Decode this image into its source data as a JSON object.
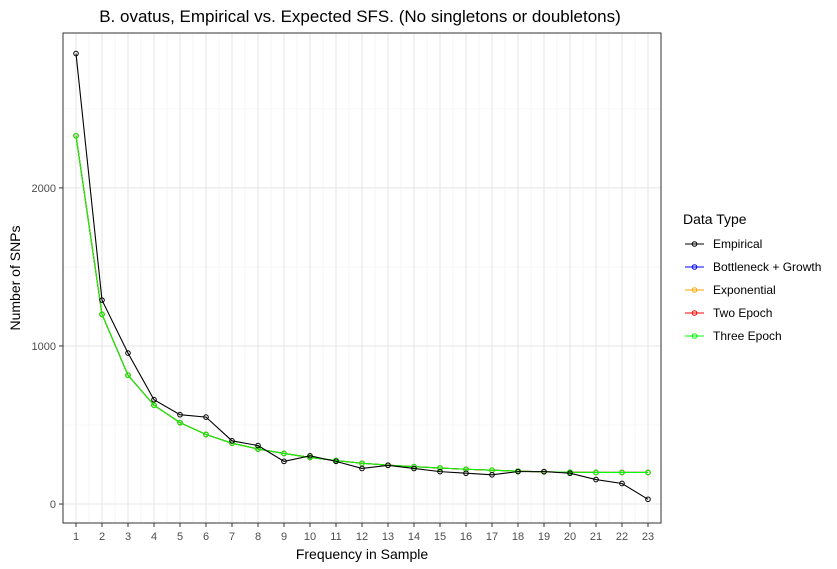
{
  "chart_data": {
    "type": "line",
    "title": "B. ovatus, Empirical vs. Expected SFS. (No singletons or doubletons)",
    "xlabel": "Frequency in Sample",
    "ylabel": "Number of SNPs",
    "x": [
      1,
      2,
      3,
      4,
      5,
      6,
      7,
      8,
      9,
      10,
      11,
      12,
      13,
      14,
      15,
      16,
      17,
      18,
      19,
      20,
      21,
      22,
      23
    ],
    "x_tick_labels": [
      "1",
      "2",
      "3",
      "4",
      "5",
      "6",
      "7",
      "8",
      "9",
      "10",
      "11",
      "12",
      "13",
      "14",
      "15",
      "16",
      "17",
      "18",
      "19",
      "20",
      "21",
      "22",
      "23"
    ],
    "y_ticks": [
      0,
      1000,
      2000
    ],
    "y_tick_labels": [
      "0",
      "1000",
      "2000"
    ],
    "xlim": [
      0.5,
      23.5
    ],
    "ylim": [
      -120,
      2980
    ],
    "grid": true,
    "legend": {
      "title": "Data Type",
      "position": "right",
      "entries": [
        {
          "name": "Empirical",
          "color": "#000000"
        },
        {
          "name": "Bottleneck + Growth",
          "color": "#0000ff"
        },
        {
          "name": "Exponential",
          "color": "#ffa500"
        },
        {
          "name": "Two Epoch",
          "color": "#ff0000"
        },
        {
          "name": "Three Epoch",
          "color": "#00ff00"
        }
      ]
    },
    "series": [
      {
        "name": "Bottleneck + Growth",
        "color": "#0000ff",
        "values": [
          2330,
          1200,
          815,
          625,
          515,
          440,
          385,
          348,
          320,
          295,
          275,
          258,
          246,
          236,
          228,
          220,
          214,
          208,
          204,
          201,
          200,
          200,
          200
        ]
      },
      {
        "name": "Exponential",
        "color": "#ffa500",
        "values": [
          2330,
          1200,
          815,
          625,
          515,
          440,
          385,
          348,
          320,
          295,
          275,
          258,
          246,
          236,
          228,
          220,
          214,
          208,
          204,
          201,
          200,
          200,
          200
        ]
      },
      {
        "name": "Two Epoch",
        "color": "#ff0000",
        "values": [
          2330,
          1200,
          815,
          625,
          515,
          440,
          385,
          348,
          320,
          295,
          275,
          258,
          246,
          236,
          228,
          220,
          214,
          208,
          204,
          201,
          200,
          200,
          200
        ]
      },
      {
        "name": "Three Epoch",
        "color": "#00ff00",
        "values": [
          2330,
          1200,
          815,
          625,
          515,
          440,
          385,
          348,
          320,
          295,
          275,
          258,
          246,
          236,
          228,
          220,
          214,
          208,
          204,
          201,
          200,
          200,
          200
        ]
      },
      {
        "name": "Empirical",
        "color": "#000000",
        "values": [
          2850,
          1290,
          955,
          660,
          565,
          550,
          400,
          370,
          270,
          305,
          270,
          225,
          245,
          225,
          205,
          195,
          185,
          205,
          205,
          195,
          155,
          130,
          30
        ]
      }
    ]
  }
}
